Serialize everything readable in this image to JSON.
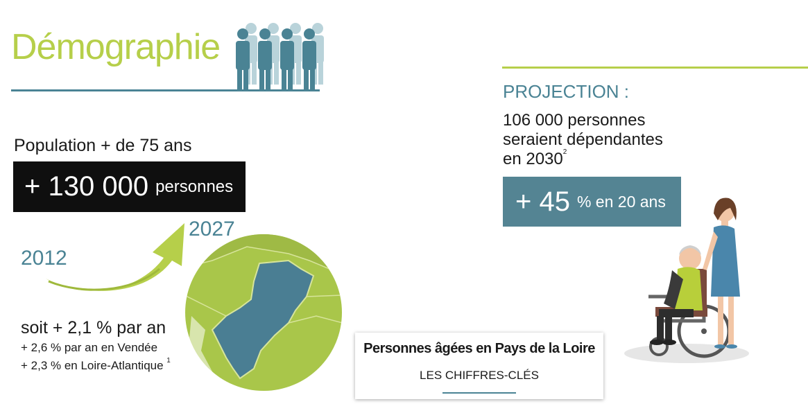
{
  "header": {
    "title": "Démographie",
    "icon": "people-group-icon"
  },
  "population": {
    "label": "Population + de 75 ans",
    "value": "+ 130 000",
    "unit": "personnes",
    "year_start": "2012",
    "year_end": "2027",
    "rate_main": "soit + 2,1 % par an",
    "rate_vendee": "+ 2,6 % par an en Vendée",
    "rate_loire_atlantique": "+ 2,3 % en Loire-Atlantique",
    "footnote_ref": "1"
  },
  "card": {
    "title": "Personnes âgées en Pays de la Loire",
    "subtitle": "LES CHIFFRES-CLÉS"
  },
  "projection": {
    "label": "PROJECTION :",
    "line1": "106 000 personnes",
    "line2": "seraient dépendantes",
    "line3": "en 2030",
    "footnote_ref": "2",
    "value": "+ 45",
    "unit": "% en 20 ans"
  },
  "colors": {
    "accent_green": "#b6cf4a",
    "accent_teal": "#4a8394",
    "dark": "#0f0f0f"
  }
}
